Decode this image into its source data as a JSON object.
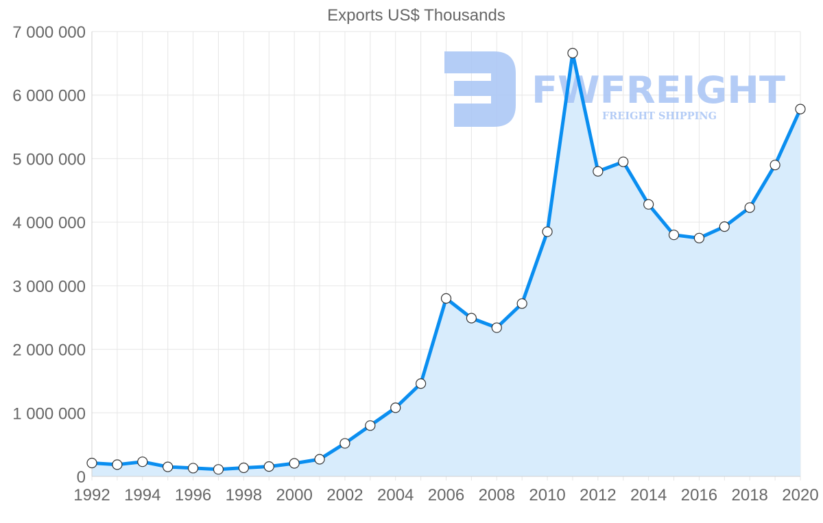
{
  "chart_data": {
    "type": "line",
    "title": "Exports US$ Thousands",
    "xlabel": "",
    "ylabel": "",
    "ylim": [
      0,
      7000000
    ],
    "xlim": [
      1992,
      2020
    ],
    "grid": true,
    "fill": "area-under-line",
    "line_color": "#0a8ef0",
    "area_color": "#d8ecfc",
    "y_ticks": [
      0,
      1000000,
      2000000,
      3000000,
      4000000,
      5000000,
      6000000,
      7000000
    ],
    "y_tick_labels": [
      "0",
      "1 000 000",
      "2 000 000",
      "3 000 000",
      "4 000 000",
      "5 000 000",
      "6 000 000",
      "7 000 000"
    ],
    "x_ticks": [
      1992,
      1994,
      1996,
      1998,
      2000,
      2002,
      2004,
      2006,
      2008,
      2010,
      2012,
      2014,
      2016,
      2018,
      2020
    ],
    "x_tick_labels": [
      "1992",
      "1994",
      "1996",
      "1998",
      "2000",
      "2002",
      "2004",
      "2006",
      "2008",
      "2010",
      "2012",
      "2014",
      "2016",
      "2018",
      "2020"
    ],
    "series": [
      {
        "name": "Exports US$ Thousands",
        "x": [
          1992,
          1993,
          1994,
          1995,
          1996,
          1997,
          1998,
          1999,
          2000,
          2001,
          2002,
          2003,
          2004,
          2005,
          2006,
          2007,
          2008,
          2009,
          2010,
          2011,
          2012,
          2013,
          2014,
          2015,
          2016,
          2017,
          2018,
          2019,
          2020
        ],
        "values": [
          210000,
          185000,
          230000,
          150000,
          130000,
          110000,
          135000,
          155000,
          205000,
          270000,
          520000,
          800000,
          1080000,
          1460000,
          2800000,
          2490000,
          2340000,
          2720000,
          3850000,
          6660000,
          4800000,
          4950000,
          4280000,
          3800000,
          3750000,
          3930000,
          4230000,
          4900000,
          5780000
        ]
      }
    ]
  },
  "watermark": {
    "brand": "FWFREIGHT",
    "tagline": "FREIGHT SHIPPING",
    "color": "#a7c4f5"
  }
}
